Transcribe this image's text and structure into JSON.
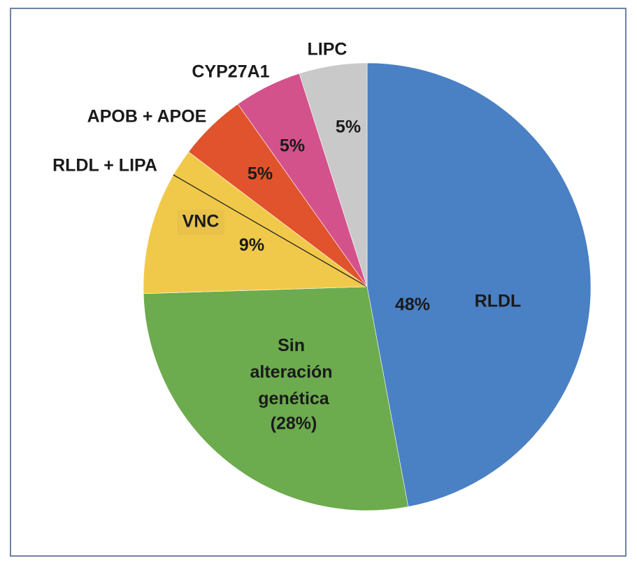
{
  "chart_data": {
    "type": "pie",
    "categories": [
      "RLDL",
      "Sin alteración genética",
      "VNC",
      "RLDL + LIPA",
      "APOB + APOE",
      "CYP27A1",
      "LIPC"
    ],
    "values": [
      48,
      28,
      9,
      2,
      5,
      5,
      5
    ],
    "value_labels": [
      "48%",
      "(28%)",
      "9%",
      null,
      "5%",
      "5%",
      "5%"
    ],
    "colors": [
      "#4a80c4",
      "#6cab4e",
      "#f1c94a",
      "#f1c94a",
      "#e0532c",
      "#d4528b",
      "#c9c9c9"
    ]
  }
}
